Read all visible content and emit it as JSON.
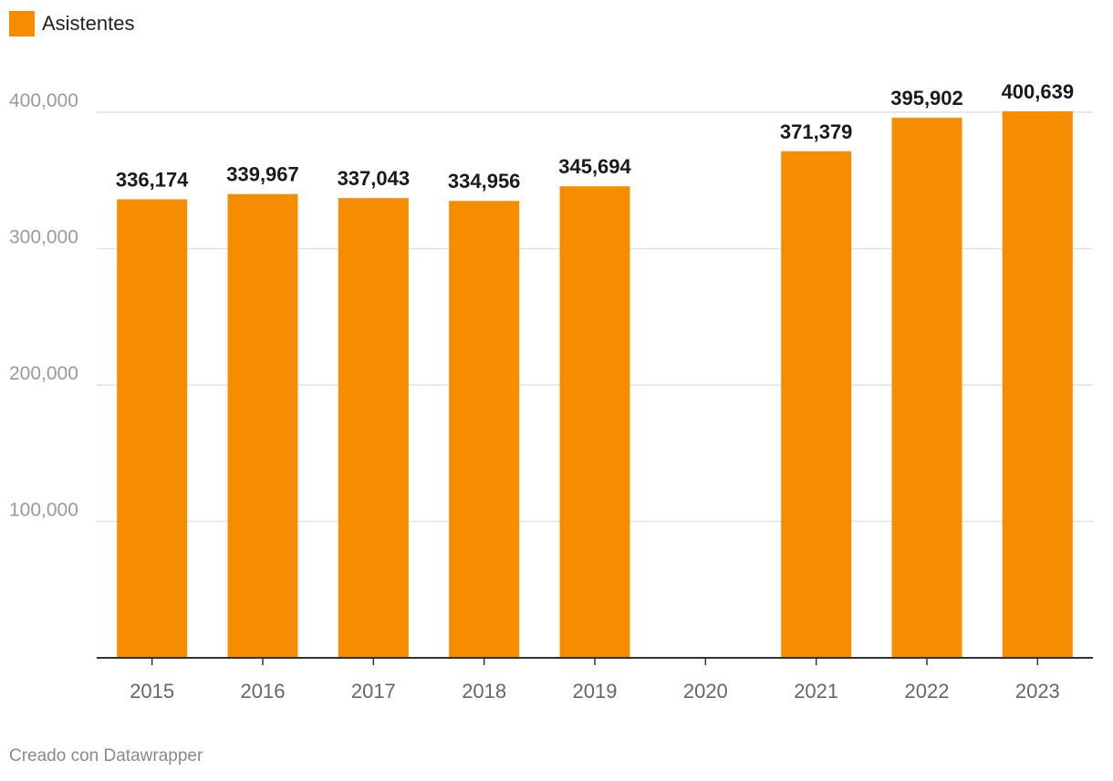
{
  "legend": {
    "label": "Asistentes",
    "color": "#f68d00"
  },
  "footer": {
    "credit": "Creado con Datawrapper"
  },
  "chart_data": {
    "type": "bar",
    "categories": [
      "2015",
      "2016",
      "2017",
      "2018",
      "2019",
      "2020",
      "2021",
      "2022",
      "2023"
    ],
    "series": [
      {
        "name": "Asistentes",
        "values": [
          336174,
          339967,
          337043,
          334956,
          345694,
          null,
          371379,
          395902,
          400639
        ],
        "labels": [
          "336,174",
          "339,967",
          "337,043",
          "334,956",
          "345,694",
          "",
          "371,379",
          "395,902",
          "400,639"
        ],
        "color": "#f68d00"
      }
    ],
    "yticks": [
      100000,
      200000,
      300000,
      400000
    ],
    "ytick_labels": [
      "100,000",
      "200,000",
      "300,000",
      "400,000"
    ],
    "ylim": [
      0,
      400000
    ],
    "grid": true,
    "legend_position": "top-left"
  }
}
